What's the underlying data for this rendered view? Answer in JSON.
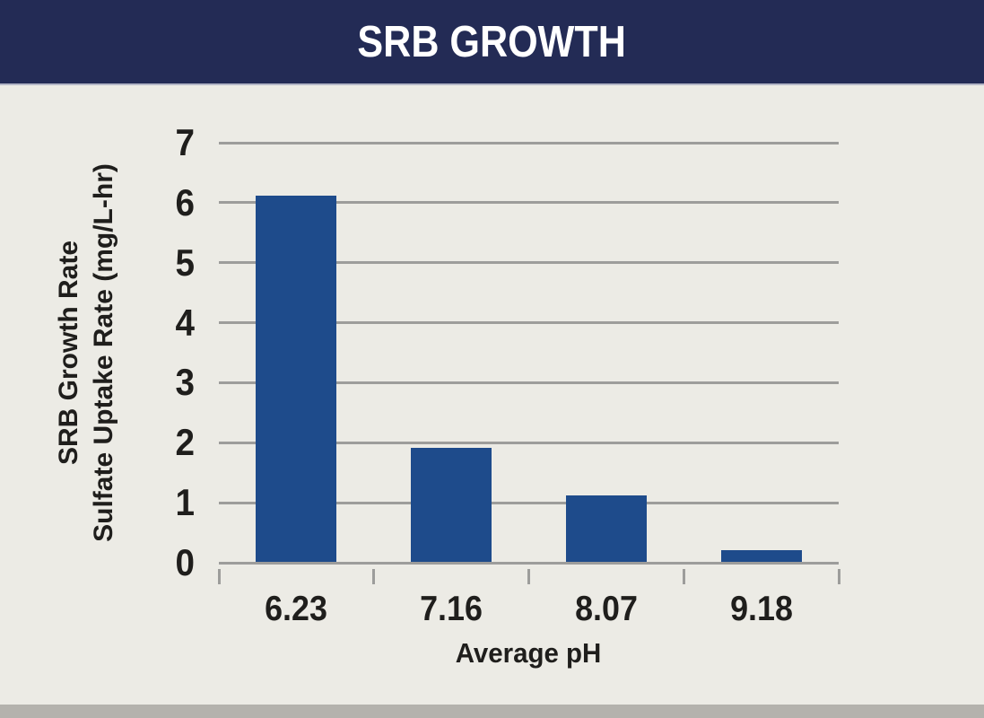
{
  "header": {
    "title": "SRB GROWTH"
  },
  "chart_data": {
    "type": "bar",
    "title": "SRB GROWTH",
    "categories": [
      "6.23",
      "7.16",
      "8.07",
      "9.18"
    ],
    "values": [
      6.1,
      1.9,
      1.1,
      0.2
    ],
    "xlabel": "Average pH",
    "ylabel_lines": [
      "SRB Growth Rate",
      "Sulfate Uptake Rate (mg/L-hr)"
    ],
    "ylim": [
      0,
      7
    ],
    "yticks": [
      0,
      1,
      2,
      3,
      4,
      5,
      6,
      7
    ],
    "grid": true,
    "legend": false
  },
  "colors": {
    "header_bg": "#232b55",
    "header_text": "#ffffff",
    "body_bg": "#ecebe5",
    "bar": "#1e4b8b",
    "gridline": "#9d9d9b",
    "footer_strip": "#b4b2ad",
    "text": "#1f1e1c"
  }
}
